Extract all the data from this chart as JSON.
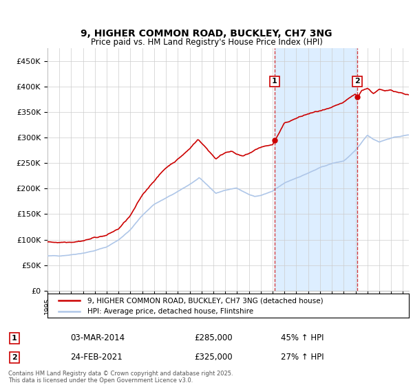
{
  "title_line1": "9, HIGHER COMMON ROAD, BUCKLEY, CH7 3NG",
  "title_line2": "Price paid vs. HM Land Registry's House Price Index (HPI)",
  "ylim": [
    0,
    475000
  ],
  "yticks": [
    0,
    50000,
    100000,
    150000,
    200000,
    250000,
    300000,
    350000,
    400000,
    450000
  ],
  "ytick_labels": [
    "£0",
    "£50K",
    "£100K",
    "£150K",
    "£200K",
    "£250K",
    "£300K",
    "£350K",
    "£400K",
    "£450K"
  ],
  "hpi_color": "#aec6e8",
  "price_color": "#cc0000",
  "vline_color": "#cc0000",
  "background_color": "#ffffff",
  "grid_color": "#cccccc",
  "span_color": "#ddeeff",
  "legend_entry1": "9, HIGHER COMMON ROAD, BUCKLEY, CH7 3NG (detached house)",
  "legend_entry2": "HPI: Average price, detached house, Flintshire",
  "annotation1_date": "03-MAR-2014",
  "annotation1_price": "£285,000",
  "annotation1_hpi": "45% ↑ HPI",
  "annotation2_date": "24-FEB-2021",
  "annotation2_price": "£325,000",
  "annotation2_hpi": "27% ↑ HPI",
  "footer": "Contains HM Land Registry data © Crown copyright and database right 2025.\nThis data is licensed under the Open Government Licence v3.0.",
  "sale1_year": 2014.17,
  "sale1_price": 285000,
  "sale1_hpi_price": 197000,
  "sale2_year": 2021.15,
  "sale2_price": 325000,
  "sale2_hpi_price": 256000,
  "xmin": 1995,
  "xmax": 2025.5
}
